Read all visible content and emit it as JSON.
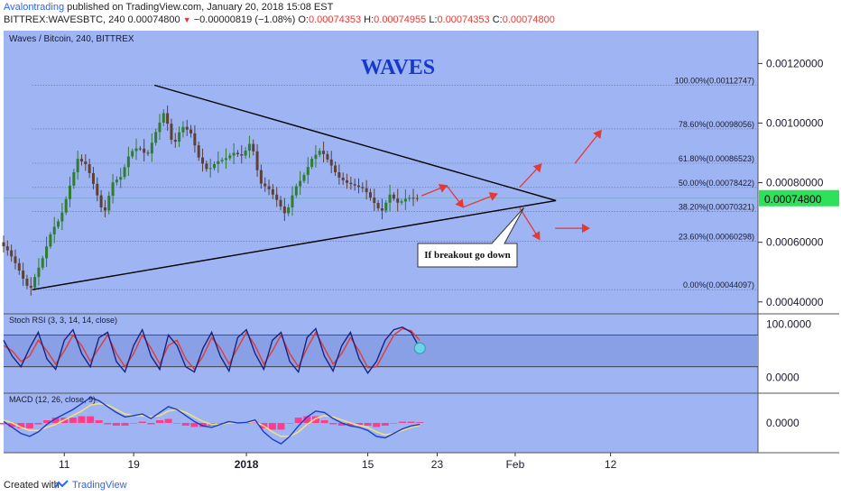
{
  "header": {
    "author": "Avalontrading",
    "published_text": "published on TradingView.com, January 20, 2018 15:08 EST",
    "symbol_line": "BITTREX:WAVESBTC, 240",
    "last": "0.00074800",
    "change": "−0.00000819 (−1.08%)",
    "o_label": "O:",
    "o_value": "0.00074353",
    "h_label": "H:",
    "h_value": "0.00074955",
    "l_label": "L:",
    "l_value": "0.00074353",
    "c_label": "C:",
    "c_value": "0.00074800"
  },
  "footer": {
    "created_with": "Created with",
    "brand": "TradingView"
  },
  "colors": {
    "pane_bg": "#9fb4f3",
    "candle_up": "#2e7d32",
    "candle_down": "#5d4037",
    "axis_text": "#1a1a2e",
    "title": "#1539c9",
    "arrow": "#e53935",
    "last_price_bg": "#2ee05a"
  },
  "chart_data": {
    "type": "candlestick",
    "title": "WAVES",
    "pane_label": "Waves / Bitcoin, 240, BITTREX",
    "ylim": [
      0.00036,
      0.00131
    ],
    "y_ticks": [
      "0.00120000",
      "0.00100000",
      "0.00080000",
      "0.00060000",
      "0.00040000"
    ],
    "y_tick_values": [
      0.0012,
      0.001,
      0.0008,
      0.0006,
      0.0004
    ],
    "last_price_label": "0.00074800",
    "last_price": 0.000748,
    "x_ticks": [
      "11",
      "19",
      "2018",
      "15",
      "23",
      "Feb",
      "12"
    ],
    "x_tick_days": [
      -21,
      -13,
      0,
      14,
      22,
      31,
      42
    ],
    "x_range_days": [
      -28,
      59
    ],
    "fib_levels": [
      {
        "label": "100.00%(0.00112747)",
        "value": 0.00112747
      },
      {
        "label": "78.60%(0.00098056)",
        "value": 0.00098056
      },
      {
        "label": "61.80%(0.00086523)",
        "value": 0.00086523
      },
      {
        "label": "50.00%(0.00078422)",
        "value": 0.00078422
      },
      {
        "label": "38.20%(0.00070321)",
        "value": 0.00070321
      },
      {
        "label": "23.60%(0.00060298)",
        "value": 0.00060298
      },
      {
        "label": "0.00%(0.00044097)",
        "value": 0.00044097
      }
    ],
    "price_path": [
      [
        -28,
        0.0006
      ],
      [
        -27,
        0.00057
      ],
      [
        -26,
        0.00052
      ],
      [
        -25,
        0.00046
      ],
      [
        -24.5,
        0.00044
      ],
      [
        -24,
        0.00048
      ],
      [
        -23,
        0.00055
      ],
      [
        -22,
        0.00064
      ],
      [
        -21,
        0.00068
      ],
      [
        -20,
        0.00078
      ],
      [
        -19,
        0.00088
      ],
      [
        -18,
        0.00086
      ],
      [
        -17,
        0.00078
      ],
      [
        -16,
        0.00069
      ],
      [
        -15,
        0.0008
      ],
      [
        -14,
        0.00082
      ],
      [
        -13,
        0.0009
      ],
      [
        -12,
        0.00092
      ],
      [
        -11,
        0.00089
      ],
      [
        -10,
        0.00097
      ],
      [
        -9,
        0.00104
      ],
      [
        -8,
        0.00092
      ],
      [
        -7,
        0.00099
      ],
      [
        -6,
        0.00097
      ],
      [
        -5,
        0.00088
      ],
      [
        -4,
        0.00084
      ],
      [
        -3,
        0.00087
      ],
      [
        -2,
        0.00088
      ],
      [
        -1,
        0.0009
      ],
      [
        0,
        0.00089
      ],
      [
        1,
        0.00094
      ],
      [
        2,
        0.0008
      ],
      [
        3,
        0.00078
      ],
      [
        4,
        0.00074
      ],
      [
        5,
        0.00069
      ],
      [
        6,
        0.00078
      ],
      [
        7,
        0.00082
      ],
      [
        8,
        0.00088
      ],
      [
        9,
        0.00091
      ],
      [
        10,
        0.00087
      ],
      [
        11,
        0.00082
      ],
      [
        12,
        0.0008
      ],
      [
        13,
        0.00079
      ],
      [
        14,
        0.00078
      ],
      [
        15,
        0.00074
      ],
      [
        16,
        0.0007
      ],
      [
        17,
        0.00076
      ],
      [
        18,
        0.00073
      ],
      [
        19,
        0.00075
      ],
      [
        20,
        0.000748
      ]
    ],
    "triangle": {
      "upper": [
        [
          -10.6,
          0.001127
        ],
        [
          35.7,
          0.00074
        ]
      ],
      "lower": [
        [
          -24.7,
          0.000441
        ],
        [
          35.7,
          0.00074
        ]
      ]
    },
    "arrows": [
      {
        "from": [
          20.2,
          0.000756
        ],
        "to": [
          23.1,
          0.00079
        ]
      },
      {
        "from": [
          23.1,
          0.00079
        ],
        "to": [
          25.0,
          0.000718
        ]
      },
      {
        "from": [
          25.0,
          0.000718
        ],
        "to": [
          28.9,
          0.000762
        ]
      },
      {
        "from": [
          31.5,
          0.000784
        ],
        "to": [
          34.0,
          0.000862
        ]
      },
      {
        "from": [
          37.9,
          0.000865
        ],
        "to": [
          40.9,
          0.000975
        ]
      },
      {
        "from": [
          31.5,
          0.000716
        ],
        "to": [
          33.8,
          0.00061
        ]
      },
      {
        "from": [
          35.6,
          0.000647
        ],
        "to": [
          39.5,
          0.000647
        ]
      }
    ],
    "annotation": {
      "text": "If breakout go down",
      "anchor": [
        32.0,
        0.000716
      ]
    },
    "stoch_rsi": {
      "label": "Stoch RSI (3, 3, 14, 14, close)",
      "ylim": [
        -30,
        120
      ],
      "y_ticks": [
        "100.0000",
        "0.0000"
      ],
      "y_tick_values": [
        100,
        0
      ],
      "bands": [
        80,
        20
      ],
      "k": [
        [
          -28,
          70
        ],
        [
          -27,
          40
        ],
        [
          -26,
          20
        ],
        [
          -25,
          55
        ],
        [
          -24,
          85
        ],
        [
          -23,
          35
        ],
        [
          -22,
          15
        ],
        [
          -21,
          70
        ],
        [
          -20,
          90
        ],
        [
          -19,
          45
        ],
        [
          -18,
          20
        ],
        [
          -17,
          75
        ],
        [
          -16,
          85
        ],
        [
          -15,
          30
        ],
        [
          -14,
          10
        ],
        [
          -13,
          60
        ],
        [
          -12,
          90
        ],
        [
          -11,
          40
        ],
        [
          -10,
          15
        ],
        [
          -9,
          80
        ],
        [
          -8,
          60
        ],
        [
          -7,
          20
        ],
        [
          -6,
          10
        ],
        [
          -5,
          55
        ],
        [
          -4,
          85
        ],
        [
          -3,
          40
        ],
        [
          -2,
          12
        ],
        [
          -1,
          75
        ],
        [
          0,
          90
        ],
        [
          1,
          45
        ],
        [
          2,
          15
        ],
        [
          3,
          70
        ],
        [
          4,
          85
        ],
        [
          5,
          30
        ],
        [
          6,
          10
        ],
        [
          7,
          75
        ],
        [
          8,
          92
        ],
        [
          9,
          40
        ],
        [
          10,
          12
        ],
        [
          11,
          60
        ],
        [
          12,
          85
        ],
        [
          13,
          35
        ],
        [
          14,
          8
        ],
        [
          15,
          30
        ],
        [
          16,
          70
        ],
        [
          17,
          90
        ],
        [
          18,
          95
        ],
        [
          19,
          85
        ],
        [
          20,
          55
        ]
      ],
      "d": [
        [
          -28,
          60
        ],
        [
          -27,
          50
        ],
        [
          -26,
          30
        ],
        [
          -25,
          40
        ],
        [
          -24,
          70
        ],
        [
          -23,
          50
        ],
        [
          -22,
          25
        ],
        [
          -21,
          50
        ],
        [
          -20,
          80
        ],
        [
          -19,
          60
        ],
        [
          -18,
          30
        ],
        [
          -17,
          55
        ],
        [
          -16,
          80
        ],
        [
          -15,
          45
        ],
        [
          -14,
          20
        ],
        [
          -13,
          45
        ],
        [
          -12,
          80
        ],
        [
          -11,
          55
        ],
        [
          -10,
          25
        ],
        [
          -9,
          60
        ],
        [
          -8,
          70
        ],
        [
          -7,
          35
        ],
        [
          -6,
          15
        ],
        [
          -5,
          40
        ],
        [
          -4,
          75
        ],
        [
          -3,
          55
        ],
        [
          -2,
          25
        ],
        [
          -1,
          55
        ],
        [
          0,
          85
        ],
        [
          1,
          60
        ],
        [
          2,
          25
        ],
        [
          3,
          50
        ],
        [
          4,
          80
        ],
        [
          5,
          45
        ],
        [
          6,
          20
        ],
        [
          7,
          55
        ],
        [
          8,
          85
        ],
        [
          9,
          55
        ],
        [
          10,
          25
        ],
        [
          11,
          45
        ],
        [
          12,
          75
        ],
        [
          13,
          50
        ],
        [
          14,
          18
        ],
        [
          15,
          20
        ],
        [
          16,
          50
        ],
        [
          17,
          80
        ],
        [
          18,
          92
        ],
        [
          19,
          88
        ],
        [
          20,
          70
        ]
      ]
    },
    "macd": {
      "label": "MACD (12, 26, close, 9)",
      "ylim": [
        -1.0,
        1.0
      ],
      "y_ticks": [
        "0.0000"
      ],
      "y_tick_values": [
        0
      ],
      "macd": [
        [
          -28,
          0.05
        ],
        [
          -27,
          -0.15
        ],
        [
          -26,
          -0.35
        ],
        [
          -25,
          -0.45
        ],
        [
          -24,
          -0.3
        ],
        [
          -23,
          -0.05
        ],
        [
          -22,
          0.15
        ],
        [
          -21,
          0.3
        ],
        [
          -20,
          0.45
        ],
        [
          -19,
          0.65
        ],
        [
          -18,
          0.85
        ],
        [
          -17,
          0.75
        ],
        [
          -16,
          0.55
        ],
        [
          -15,
          0.35
        ],
        [
          -14,
          0.2
        ],
        [
          -13,
          0.25
        ],
        [
          -12,
          0.3
        ],
        [
          -11,
          0.15
        ],
        [
          -10,
          0.35
        ],
        [
          -9,
          0.55
        ],
        [
          -8,
          0.45
        ],
        [
          -7,
          0.25
        ],
        [
          -6,
          0.05
        ],
        [
          -5,
          -0.1
        ],
        [
          -4,
          -0.15
        ],
        [
          -3,
          -0.05
        ],
        [
          -2,
          0.05
        ],
        [
          -1,
          0.0
        ],
        [
          0,
          0.02
        ],
        [
          1,
          0.1
        ],
        [
          2,
          -0.3
        ],
        [
          3,
          -0.55
        ],
        [
          4,
          -0.7
        ],
        [
          5,
          -0.45
        ],
        [
          6,
          -0.1
        ],
        [
          7,
          0.2
        ],
        [
          8,
          0.4
        ],
        [
          9,
          0.35
        ],
        [
          10,
          0.15
        ],
        [
          11,
          0.0
        ],
        [
          12,
          -0.1
        ],
        [
          13,
          -0.15
        ],
        [
          14,
          -0.25
        ],
        [
          15,
          -0.45
        ],
        [
          16,
          -0.5
        ],
        [
          17,
          -0.35
        ],
        [
          18,
          -0.2
        ],
        [
          19,
          -0.1
        ],
        [
          20,
          -0.05
        ]
      ],
      "signal": [
        [
          -28,
          0.1
        ],
        [
          -27,
          0.0
        ],
        [
          -26,
          -0.15
        ],
        [
          -25,
          -0.25
        ],
        [
          -24,
          -0.25
        ],
        [
          -23,
          -0.15
        ],
        [
          -22,
          -0.05
        ],
        [
          -21,
          0.1
        ],
        [
          -20,
          0.25
        ],
        [
          -19,
          0.4
        ],
        [
          -18,
          0.6
        ],
        [
          -17,
          0.65
        ],
        [
          -16,
          0.6
        ],
        [
          -15,
          0.45
        ],
        [
          -14,
          0.3
        ],
        [
          -13,
          0.25
        ],
        [
          -12,
          0.25
        ],
        [
          -11,
          0.2
        ],
        [
          -10,
          0.25
        ],
        [
          -9,
          0.4
        ],
        [
          -8,
          0.45
        ],
        [
          -7,
          0.35
        ],
        [
          -6,
          0.2
        ],
        [
          -5,
          0.05
        ],
        [
          -4,
          -0.05
        ],
        [
          -3,
          -0.05
        ],
        [
          -2,
          0.0
        ],
        [
          -1,
          0.0
        ],
        [
          0,
          0.02
        ],
        [
          1,
          0.05
        ],
        [
          2,
          -0.1
        ],
        [
          3,
          -0.3
        ],
        [
          4,
          -0.45
        ],
        [
          5,
          -0.45
        ],
        [
          6,
          -0.3
        ],
        [
          7,
          -0.05
        ],
        [
          8,
          0.15
        ],
        [
          9,
          0.25
        ],
        [
          10,
          0.2
        ],
        [
          11,
          0.1
        ],
        [
          12,
          0.0
        ],
        [
          13,
          -0.08
        ],
        [
          14,
          -0.15
        ],
        [
          15,
          -0.3
        ],
        [
          16,
          -0.4
        ],
        [
          17,
          -0.35
        ],
        [
          18,
          -0.25
        ],
        [
          19,
          -0.15
        ],
        [
          20,
          -0.08
        ]
      ]
    }
  }
}
